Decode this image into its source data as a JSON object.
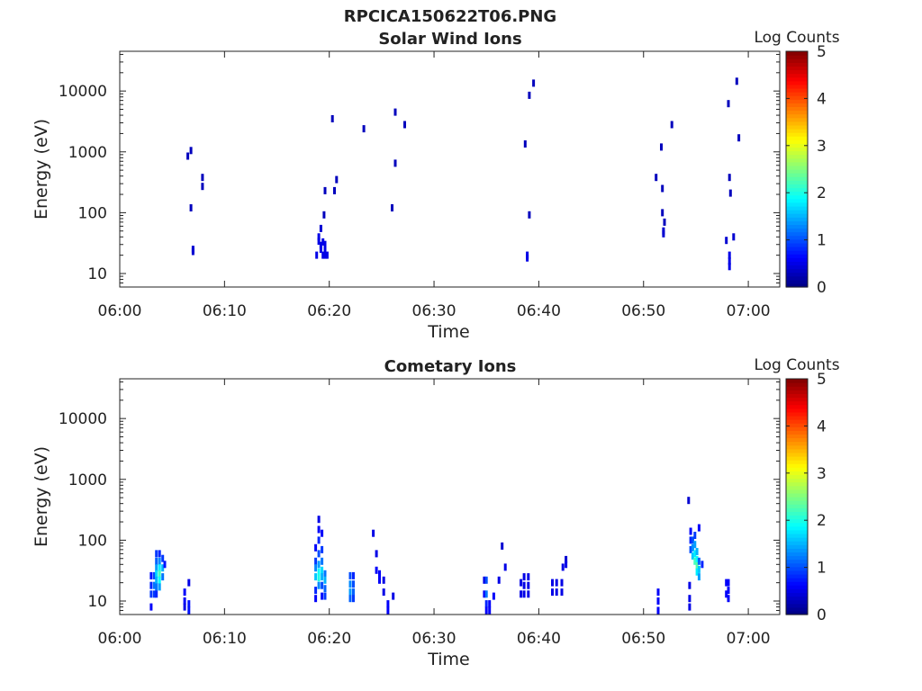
{
  "figure_title": "RPCICA150622T06.PNG",
  "chart_data": [
    {
      "type": "heatmap",
      "title": "Solar Wind Ions",
      "xlabel": "Time",
      "ylabel": "Energy (eV)",
      "x_ticks": [
        "06:00",
        "06:10",
        "06:20",
        "06:30",
        "06:40",
        "06:50",
        "07:00"
      ],
      "x_range_minutes": [
        0,
        63
      ],
      "y_ticks": [
        "10",
        "100",
        "1000",
        "10000"
      ],
      "y_scale": "log",
      "y_range": [
        6,
        45000
      ],
      "colorbar": {
        "label": "Log Counts",
        "ticks": [
          "0",
          "1",
          "2",
          "3",
          "4",
          "5"
        ],
        "range": [
          0,
          5
        ],
        "colormap": "jet"
      },
      "cells": [
        {
          "t": 6.5,
          "e": 850,
          "v": 0.3
        },
        {
          "t": 6.8,
          "e": 1050,
          "v": 0.3
        },
        {
          "t": 6.8,
          "e": 120,
          "v": 0.3
        },
        {
          "t": 7.0,
          "e": 25,
          "v": 0.4
        },
        {
          "t": 7.0,
          "e": 23,
          "v": 0.4
        },
        {
          "t": 7.9,
          "e": 380,
          "v": 0.3
        },
        {
          "t": 7.9,
          "e": 270,
          "v": 0.3
        },
        {
          "t": 18.8,
          "e": 20,
          "v": 0.5
        },
        {
          "t": 19.0,
          "e": 40,
          "v": 0.5
        },
        {
          "t": 19.0,
          "e": 34,
          "v": 0.5
        },
        {
          "t": 19.2,
          "e": 55,
          "v": 0.4
        },
        {
          "t": 19.2,
          "e": 29,
          "v": 0.5
        },
        {
          "t": 19.2,
          "e": 25,
          "v": 0.5
        },
        {
          "t": 19.4,
          "e": 33,
          "v": 0.5
        },
        {
          "t": 19.4,
          "e": 20,
          "v": 0.5
        },
        {
          "t": 19.6,
          "e": 30,
          "v": 0.5
        },
        {
          "t": 19.6,
          "e": 24,
          "v": 0.5
        },
        {
          "t": 19.6,
          "e": 20,
          "v": 0.5
        },
        {
          "t": 19.8,
          "e": 20,
          "v": 0.5
        },
        {
          "t": 19.5,
          "e": 92,
          "v": 0.3
        },
        {
          "t": 19.6,
          "e": 230,
          "v": 0.3
        },
        {
          "t": 20.3,
          "e": 3500,
          "v": 0.3
        },
        {
          "t": 20.5,
          "e": 230,
          "v": 0.3
        },
        {
          "t": 20.7,
          "e": 350,
          "v": 0.3
        },
        {
          "t": 23.3,
          "e": 2400,
          "v": 0.3
        },
        {
          "t": 26.0,
          "e": 120,
          "v": 0.3
        },
        {
          "t": 26.3,
          "e": 4500,
          "v": 0.3
        },
        {
          "t": 26.3,
          "e": 650,
          "v": 0.3
        },
        {
          "t": 27.2,
          "e": 2800,
          "v": 0.3
        },
        {
          "t": 38.7,
          "e": 1350,
          "v": 0.3
        },
        {
          "t": 38.9,
          "e": 20,
          "v": 0.5
        },
        {
          "t": 38.9,
          "e": 18,
          "v": 0.5
        },
        {
          "t": 39.1,
          "e": 92,
          "v": 0.3
        },
        {
          "t": 39.1,
          "e": 8500,
          "v": 0.3
        },
        {
          "t": 39.5,
          "e": 13500,
          "v": 0.3
        },
        {
          "t": 51.2,
          "e": 380,
          "v": 0.3
        },
        {
          "t": 51.7,
          "e": 1200,
          "v": 0.3
        },
        {
          "t": 51.8,
          "e": 250,
          "v": 0.3
        },
        {
          "t": 51.8,
          "e": 100,
          "v": 0.3
        },
        {
          "t": 51.9,
          "e": 50,
          "v": 0.4
        },
        {
          "t": 51.9,
          "e": 45,
          "v": 0.4
        },
        {
          "t": 52.0,
          "e": 70,
          "v": 0.3
        },
        {
          "t": 52.7,
          "e": 2800,
          "v": 0.3
        },
        {
          "t": 57.9,
          "e": 35,
          "v": 0.4
        },
        {
          "t": 58.2,
          "e": 20,
          "v": 0.5
        },
        {
          "t": 58.2,
          "e": 16,
          "v": 0.5
        },
        {
          "t": 58.2,
          "e": 13,
          "v": 0.5
        },
        {
          "t": 58.1,
          "e": 6200,
          "v": 0.3
        },
        {
          "t": 58.2,
          "e": 380,
          "v": 0.3
        },
        {
          "t": 58.3,
          "e": 210,
          "v": 0.3
        },
        {
          "t": 58.6,
          "e": 40,
          "v": 0.4
        },
        {
          "t": 58.9,
          "e": 14500,
          "v": 0.3
        },
        {
          "t": 59.1,
          "e": 1700,
          "v": 0.3
        }
      ]
    },
    {
      "type": "heatmap",
      "title": "Cometary Ions",
      "xlabel": "Time",
      "ylabel": "Energy (eV)",
      "x_ticks": [
        "06:00",
        "06:10",
        "06:20",
        "06:30",
        "06:40",
        "06:50",
        "07:00"
      ],
      "x_range_minutes": [
        0,
        63
      ],
      "y_ticks": [
        "10",
        "100",
        "1000",
        "10000"
      ],
      "y_scale": "log",
      "y_range": [
        6,
        45000
      ],
      "colorbar": {
        "label": "Log Counts",
        "ticks": [
          "0",
          "1",
          "2",
          "3",
          "4",
          "5"
        ],
        "range": [
          0,
          5
        ],
        "colormap": "jet"
      },
      "cells": [
        {
          "t": 3.0,
          "e": 26,
          "v": 0.7
        },
        {
          "t": 3.0,
          "e": 18,
          "v": 0.8
        },
        {
          "t": 3.0,
          "e": 13,
          "v": 0.9
        },
        {
          "t": 3.0,
          "e": 8,
          "v": 0.6
        },
        {
          "t": 3.3,
          "e": 26,
          "v": 1.0
        },
        {
          "t": 3.3,
          "e": 18,
          "v": 1.2
        },
        {
          "t": 3.3,
          "e": 13,
          "v": 0.9
        },
        {
          "t": 3.5,
          "e": 60,
          "v": 0.9
        },
        {
          "t": 3.5,
          "e": 45,
          "v": 1.1
        },
        {
          "t": 3.5,
          "e": 35,
          "v": 1.4
        },
        {
          "t": 3.5,
          "e": 28,
          "v": 1.7
        },
        {
          "t": 3.5,
          "e": 22,
          "v": 1.5
        },
        {
          "t": 3.5,
          "e": 17,
          "v": 1.2
        },
        {
          "t": 3.5,
          "e": 13,
          "v": 0.8
        },
        {
          "t": 3.8,
          "e": 60,
          "v": 0.8
        },
        {
          "t": 3.8,
          "e": 45,
          "v": 1.3
        },
        {
          "t": 3.8,
          "e": 35,
          "v": 1.8
        },
        {
          "t": 3.8,
          "e": 28,
          "v": 2.2
        },
        {
          "t": 3.8,
          "e": 22,
          "v": 1.9
        },
        {
          "t": 3.8,
          "e": 17,
          "v": 1.4
        },
        {
          "t": 4.1,
          "e": 50,
          "v": 0.9
        },
        {
          "t": 4.1,
          "e": 35,
          "v": 1.5
        },
        {
          "t": 4.1,
          "e": 25,
          "v": 1.2
        },
        {
          "t": 4.3,
          "e": 40,
          "v": 0.7
        },
        {
          "t": 6.2,
          "e": 14,
          "v": 0.6
        },
        {
          "t": 6.2,
          "e": 10,
          "v": 0.6
        },
        {
          "t": 6.2,
          "e": 8,
          "v": 0.5
        },
        {
          "t": 6.6,
          "e": 20,
          "v": 0.5
        },
        {
          "t": 6.6,
          "e": 9,
          "v": 0.7
        },
        {
          "t": 6.6,
          "e": 7,
          "v": 0.7
        },
        {
          "t": 18.7,
          "e": 75,
          "v": 0.6
        },
        {
          "t": 18.7,
          "e": 45,
          "v": 0.9
        },
        {
          "t": 18.7,
          "e": 35,
          "v": 1.3
        },
        {
          "t": 18.7,
          "e": 25,
          "v": 1.6
        },
        {
          "t": 18.7,
          "e": 15,
          "v": 0.8
        },
        {
          "t": 18.7,
          "e": 11,
          "v": 0.6
        },
        {
          "t": 19.0,
          "e": 220,
          "v": 0.5
        },
        {
          "t": 19.0,
          "e": 150,
          "v": 0.6
        },
        {
          "t": 19.0,
          "e": 100,
          "v": 0.8
        },
        {
          "t": 19.0,
          "e": 60,
          "v": 1.0
        },
        {
          "t": 19.0,
          "e": 40,
          "v": 1.4
        },
        {
          "t": 19.0,
          "e": 30,
          "v": 1.9
        },
        {
          "t": 19.0,
          "e": 24,
          "v": 2.0
        },
        {
          "t": 19.0,
          "e": 18,
          "v": 1.3
        },
        {
          "t": 19.3,
          "e": 130,
          "v": 0.6
        },
        {
          "t": 19.3,
          "e": 70,
          "v": 0.9
        },
        {
          "t": 19.3,
          "e": 45,
          "v": 1.2
        },
        {
          "t": 19.3,
          "e": 32,
          "v": 1.7
        },
        {
          "t": 19.3,
          "e": 25,
          "v": 1.5
        },
        {
          "t": 19.3,
          "e": 18,
          "v": 1.0
        },
        {
          "t": 19.3,
          "e": 12,
          "v": 0.7
        },
        {
          "t": 19.6,
          "e": 28,
          "v": 1.2
        },
        {
          "t": 19.6,
          "e": 22,
          "v": 1.5
        },
        {
          "t": 19.6,
          "e": 16,
          "v": 1.1
        },
        {
          "t": 19.6,
          "e": 12,
          "v": 0.9
        },
        {
          "t": 22.0,
          "e": 26,
          "v": 1.0
        },
        {
          "t": 22.0,
          "e": 19,
          "v": 1.3
        },
        {
          "t": 22.0,
          "e": 14,
          "v": 1.4
        },
        {
          "t": 22.0,
          "e": 11,
          "v": 1.1
        },
        {
          "t": 22.3,
          "e": 26,
          "v": 0.8
        },
        {
          "t": 22.3,
          "e": 19,
          "v": 1.0
        },
        {
          "t": 22.3,
          "e": 14,
          "v": 1.1
        },
        {
          "t": 22.3,
          "e": 11,
          "v": 0.9
        },
        {
          "t": 24.2,
          "e": 130,
          "v": 0.5
        },
        {
          "t": 24.5,
          "e": 60,
          "v": 0.5
        },
        {
          "t": 24.5,
          "e": 32,
          "v": 0.6
        },
        {
          "t": 24.8,
          "e": 28,
          "v": 0.6
        },
        {
          "t": 24.8,
          "e": 22,
          "v": 0.6
        },
        {
          "t": 25.2,
          "e": 22,
          "v": 0.5
        },
        {
          "t": 25.2,
          "e": 14,
          "v": 0.5
        },
        {
          "t": 25.6,
          "e": 9,
          "v": 0.6
        },
        {
          "t": 25.6,
          "e": 7,
          "v": 0.6
        },
        {
          "t": 26.1,
          "e": 12,
          "v": 0.5
        },
        {
          "t": 34.8,
          "e": 22,
          "v": 0.5
        },
        {
          "t": 34.8,
          "e": 13,
          "v": 0.6
        },
        {
          "t": 35.0,
          "e": 22,
          "v": 1.0
        },
        {
          "t": 35.0,
          "e": 13,
          "v": 1.2
        },
        {
          "t": 35.0,
          "e": 9,
          "v": 0.8
        },
        {
          "t": 35.0,
          "e": 7,
          "v": 0.6
        },
        {
          "t": 35.3,
          "e": 9,
          "v": 0.6
        },
        {
          "t": 35.3,
          "e": 7,
          "v": 0.6
        },
        {
          "t": 35.7,
          "e": 12,
          "v": 0.6
        },
        {
          "t": 36.2,
          "e": 22,
          "v": 0.5
        },
        {
          "t": 36.5,
          "e": 80,
          "v": 0.4
        },
        {
          "t": 36.8,
          "e": 36,
          "v": 0.5
        },
        {
          "t": 38.3,
          "e": 20,
          "v": 0.5
        },
        {
          "t": 38.3,
          "e": 13,
          "v": 0.5
        },
        {
          "t": 38.6,
          "e": 25,
          "v": 0.5
        },
        {
          "t": 38.6,
          "e": 18,
          "v": 0.5
        },
        {
          "t": 38.6,
          "e": 13,
          "v": 0.5
        },
        {
          "t": 39.0,
          "e": 25,
          "v": 0.5
        },
        {
          "t": 39.0,
          "e": 18,
          "v": 0.5
        },
        {
          "t": 39.0,
          "e": 13,
          "v": 0.5
        },
        {
          "t": 41.3,
          "e": 20,
          "v": 0.5
        },
        {
          "t": 41.3,
          "e": 14,
          "v": 0.5
        },
        {
          "t": 41.7,
          "e": 20,
          "v": 0.5
        },
        {
          "t": 41.7,
          "e": 14,
          "v": 0.5
        },
        {
          "t": 42.2,
          "e": 20,
          "v": 0.5
        },
        {
          "t": 42.2,
          "e": 14,
          "v": 0.5
        },
        {
          "t": 42.3,
          "e": 36,
          "v": 0.5
        },
        {
          "t": 42.6,
          "e": 48,
          "v": 0.4
        },
        {
          "t": 42.6,
          "e": 40,
          "v": 0.5
        },
        {
          "t": 51.4,
          "e": 14,
          "v": 0.6
        },
        {
          "t": 51.4,
          "e": 10,
          "v": 0.6
        },
        {
          "t": 51.4,
          "e": 7,
          "v": 0.6
        },
        {
          "t": 54.3,
          "e": 450,
          "v": 0.4
        },
        {
          "t": 54.5,
          "e": 140,
          "v": 0.6
        },
        {
          "t": 54.5,
          "e": 100,
          "v": 0.8
        },
        {
          "t": 54.5,
          "e": 70,
          "v": 1.0
        },
        {
          "t": 54.7,
          "e": 100,
          "v": 1.0
        },
        {
          "t": 54.7,
          "e": 75,
          "v": 1.3
        },
        {
          "t": 54.7,
          "e": 55,
          "v": 1.6
        },
        {
          "t": 54.9,
          "e": 120,
          "v": 0.9
        },
        {
          "t": 54.9,
          "e": 85,
          "v": 1.4
        },
        {
          "t": 54.9,
          "e": 60,
          "v": 1.8
        },
        {
          "t": 54.9,
          "e": 45,
          "v": 2.2
        },
        {
          "t": 55.1,
          "e": 65,
          "v": 1.5
        },
        {
          "t": 55.1,
          "e": 48,
          "v": 1.9
        },
        {
          "t": 55.1,
          "e": 38,
          "v": 2.3
        },
        {
          "t": 55.1,
          "e": 30,
          "v": 1.8
        },
        {
          "t": 55.3,
          "e": 160,
          "v": 0.6
        },
        {
          "t": 55.3,
          "e": 45,
          "v": 1.1
        },
        {
          "t": 55.3,
          "e": 33,
          "v": 1.6
        },
        {
          "t": 55.3,
          "e": 25,
          "v": 1.4
        },
        {
          "t": 55.6,
          "e": 40,
          "v": 0.8
        },
        {
          "t": 54.4,
          "e": 18,
          "v": 0.5
        },
        {
          "t": 54.4,
          "e": 11,
          "v": 0.5
        },
        {
          "t": 54.4,
          "e": 8,
          "v": 0.5
        },
        {
          "t": 57.9,
          "e": 20,
          "v": 0.6
        },
        {
          "t": 57.9,
          "e": 13,
          "v": 0.6
        },
        {
          "t": 58.1,
          "e": 20,
          "v": 0.6
        },
        {
          "t": 58.1,
          "e": 15,
          "v": 0.6
        },
        {
          "t": 58.1,
          "e": 11,
          "v": 0.6
        }
      ]
    }
  ]
}
